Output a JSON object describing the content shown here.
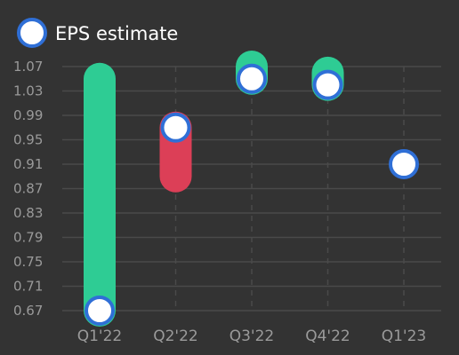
{
  "chart_data": {
    "type": "bar",
    "categories": [
      "Q1'22",
      "Q2'22",
      "Q3'22",
      "Q4'22",
      "Q1'23"
    ],
    "series": [
      {
        "name": "EPS estimate",
        "values": [
          0.67,
          0.97,
          1.05,
          1.04,
          0.91
        ]
      },
      {
        "name": "",
        "values": [
          1.05,
          0.89,
          1.07,
          1.06,
          null
        ]
      }
    ],
    "legend": {
      "label": "EPS estimate",
      "position": "top-left"
    },
    "yticks": [
      "1.07",
      "1.03",
      "0.99",
      "0.95",
      "0.91",
      "0.87",
      "0.83",
      "0.79",
      "0.75",
      "0.71",
      "0.67"
    ],
    "ylim": [
      0.67,
      1.07
    ],
    "grid": "horizontal solid, vertical dashed",
    "colors": {
      "background": "#333333",
      "beat": "#2ecc94",
      "miss": "#dc3f57",
      "marker_fill": "#ffffff",
      "marker_stroke": "#2f6fd6",
      "grid": "#4a4a4a",
      "text": "#9a9a9a"
    }
  }
}
